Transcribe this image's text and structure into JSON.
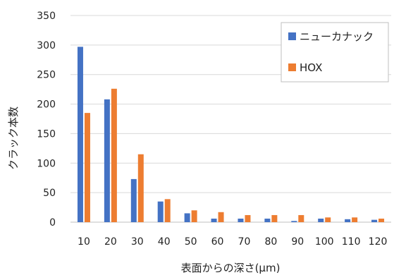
{
  "chart_data": {
    "type": "bar",
    "xlabel": "表面からの深さ(μm)",
    "ylabel": "クラック本数",
    "categories": [
      "10",
      "20",
      "30",
      "40",
      "50",
      "60",
      "70",
      "80",
      "90",
      "100",
      "110",
      "120"
    ],
    "ylim": [
      0,
      350
    ],
    "yticks": [
      0,
      50,
      100,
      150,
      200,
      250,
      300,
      350
    ],
    "grid": true,
    "legend_position": "top-right",
    "series": [
      {
        "name": "ニューカナック",
        "color": "#4472C4",
        "values": [
          297,
          208,
          73,
          35,
          15,
          6,
          6,
          6,
          2,
          6,
          5,
          4
        ]
      },
      {
        "name": "HOX",
        "color": "#ED7D31",
        "values": [
          185,
          226,
          115,
          39,
          20,
          17,
          12,
          12,
          12,
          8,
          8,
          6
        ]
      }
    ]
  }
}
